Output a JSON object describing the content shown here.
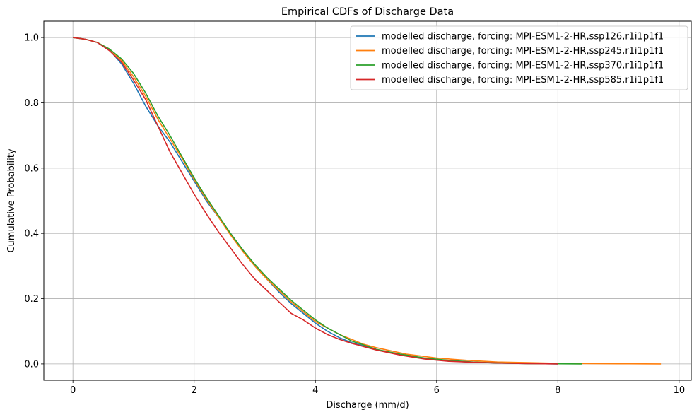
{
  "chart_data": {
    "type": "line",
    "title": "Empirical CDFs of Discharge Data",
    "xlabel": "Discharge (mm/d)",
    "ylabel": "Cumulative Probability",
    "xlim": [
      -0.48,
      10.2
    ],
    "ylim": [
      -0.05,
      1.05
    ],
    "xticks": [
      0,
      2,
      4,
      6,
      8,
      10
    ],
    "yticks": [
      0.0,
      0.2,
      0.4,
      0.6,
      0.8,
      1.0
    ],
    "xtick_labels": [
      "0",
      "2",
      "4",
      "6",
      "8",
      "10"
    ],
    "ytick_labels": [
      "0.0",
      "0.2",
      "0.4",
      "0.6",
      "0.8",
      "1.0"
    ],
    "grid": true,
    "legend_position": "top-right",
    "series": [
      {
        "name": "modelled discharge, forcing: MPI-ESM1-2-HR,ssp126,r1i1p1f1",
        "color": "#1f77b4",
        "x": [
          0,
          0.2,
          0.4,
          0.6,
          0.8,
          1.0,
          1.2,
          1.4,
          1.6,
          1.8,
          2.0,
          2.2,
          2.4,
          2.6,
          2.8,
          3.0,
          3.2,
          3.4,
          3.6,
          3.8,
          4.0,
          4.2,
          4.4,
          4.6,
          4.8,
          5.0,
          5.4,
          5.8,
          6.2,
          6.6,
          7.0,
          7.5,
          8.0
        ],
        "y": [
          1.0,
          0.995,
          0.985,
          0.962,
          0.92,
          0.86,
          0.79,
          0.73,
          0.68,
          0.62,
          0.56,
          0.5,
          0.45,
          0.4,
          0.35,
          0.3,
          0.26,
          0.22,
          0.185,
          0.155,
          0.125,
          0.1,
          0.08,
          0.065,
          0.055,
          0.045,
          0.028,
          0.016,
          0.009,
          0.005,
          0.003,
          0.001,
          0.0
        ]
      },
      {
        "name": "modelled discharge, forcing: MPI-ESM1-2-HR,ssp245,r1i1p1f1",
        "color": "#ff7f0e",
        "x": [
          0,
          0.2,
          0.4,
          0.6,
          0.8,
          1.0,
          1.2,
          1.4,
          1.6,
          1.8,
          2.0,
          2.2,
          2.4,
          2.6,
          2.8,
          3.0,
          3.2,
          3.4,
          3.6,
          3.8,
          4.0,
          4.2,
          4.4,
          4.6,
          4.8,
          5.0,
          5.5,
          6.0,
          6.5,
          7.0,
          7.5,
          8.0,
          8.5,
          9.0,
          9.7
        ],
        "y": [
          1.0,
          0.995,
          0.985,
          0.965,
          0.93,
          0.88,
          0.82,
          0.75,
          0.69,
          0.63,
          0.565,
          0.505,
          0.45,
          0.395,
          0.345,
          0.3,
          0.26,
          0.225,
          0.19,
          0.16,
          0.13,
          0.11,
          0.09,
          0.075,
          0.06,
          0.05,
          0.03,
          0.018,
          0.011,
          0.006,
          0.004,
          0.002,
          0.001,
          0.0005,
          0.0
        ]
      },
      {
        "name": "modelled discharge, forcing: MPI-ESM1-2-HR,ssp370,r1i1p1f1",
        "color": "#2ca02c",
        "x": [
          0,
          0.2,
          0.4,
          0.6,
          0.8,
          1.0,
          1.2,
          1.4,
          1.6,
          1.8,
          2.0,
          2.2,
          2.4,
          2.6,
          2.8,
          3.0,
          3.2,
          3.4,
          3.6,
          3.8,
          4.0,
          4.2,
          4.4,
          4.6,
          4.8,
          5.0,
          5.4,
          5.8,
          6.2,
          6.6,
          7.0,
          7.5,
          8.0,
          8.4
        ],
        "y": [
          1.0,
          0.995,
          0.985,
          0.965,
          0.935,
          0.89,
          0.83,
          0.76,
          0.7,
          0.635,
          0.57,
          0.51,
          0.455,
          0.4,
          0.35,
          0.305,
          0.265,
          0.23,
          0.195,
          0.165,
          0.135,
          0.11,
          0.09,
          0.07,
          0.058,
          0.045,
          0.03,
          0.018,
          0.011,
          0.006,
          0.003,
          0.001,
          0.0005,
          0.0
        ]
      },
      {
        "name": "modelled discharge, forcing: MPI-ESM1-2-HR,ssp585,r1i1p1f1",
        "color": "#d62728",
        "x": [
          0,
          0.2,
          0.4,
          0.6,
          0.8,
          1.0,
          1.2,
          1.4,
          1.6,
          1.8,
          2.0,
          2.2,
          2.4,
          2.6,
          2.8,
          3.0,
          3.2,
          3.4,
          3.6,
          3.8,
          4.0,
          4.2,
          4.4,
          4.6,
          4.8,
          5.0,
          5.4,
          5.8,
          6.2,
          6.6,
          7.0,
          7.5,
          8.0
        ],
        "y": [
          1.0,
          0.995,
          0.985,
          0.96,
          0.925,
          0.87,
          0.81,
          0.73,
          0.65,
          0.585,
          0.52,
          0.46,
          0.405,
          0.355,
          0.305,
          0.26,
          0.225,
          0.19,
          0.155,
          0.135,
          0.11,
          0.09,
          0.075,
          0.063,
          0.053,
          0.043,
          0.027,
          0.015,
          0.008,
          0.005,
          0.003,
          0.001,
          0.0
        ]
      }
    ]
  }
}
